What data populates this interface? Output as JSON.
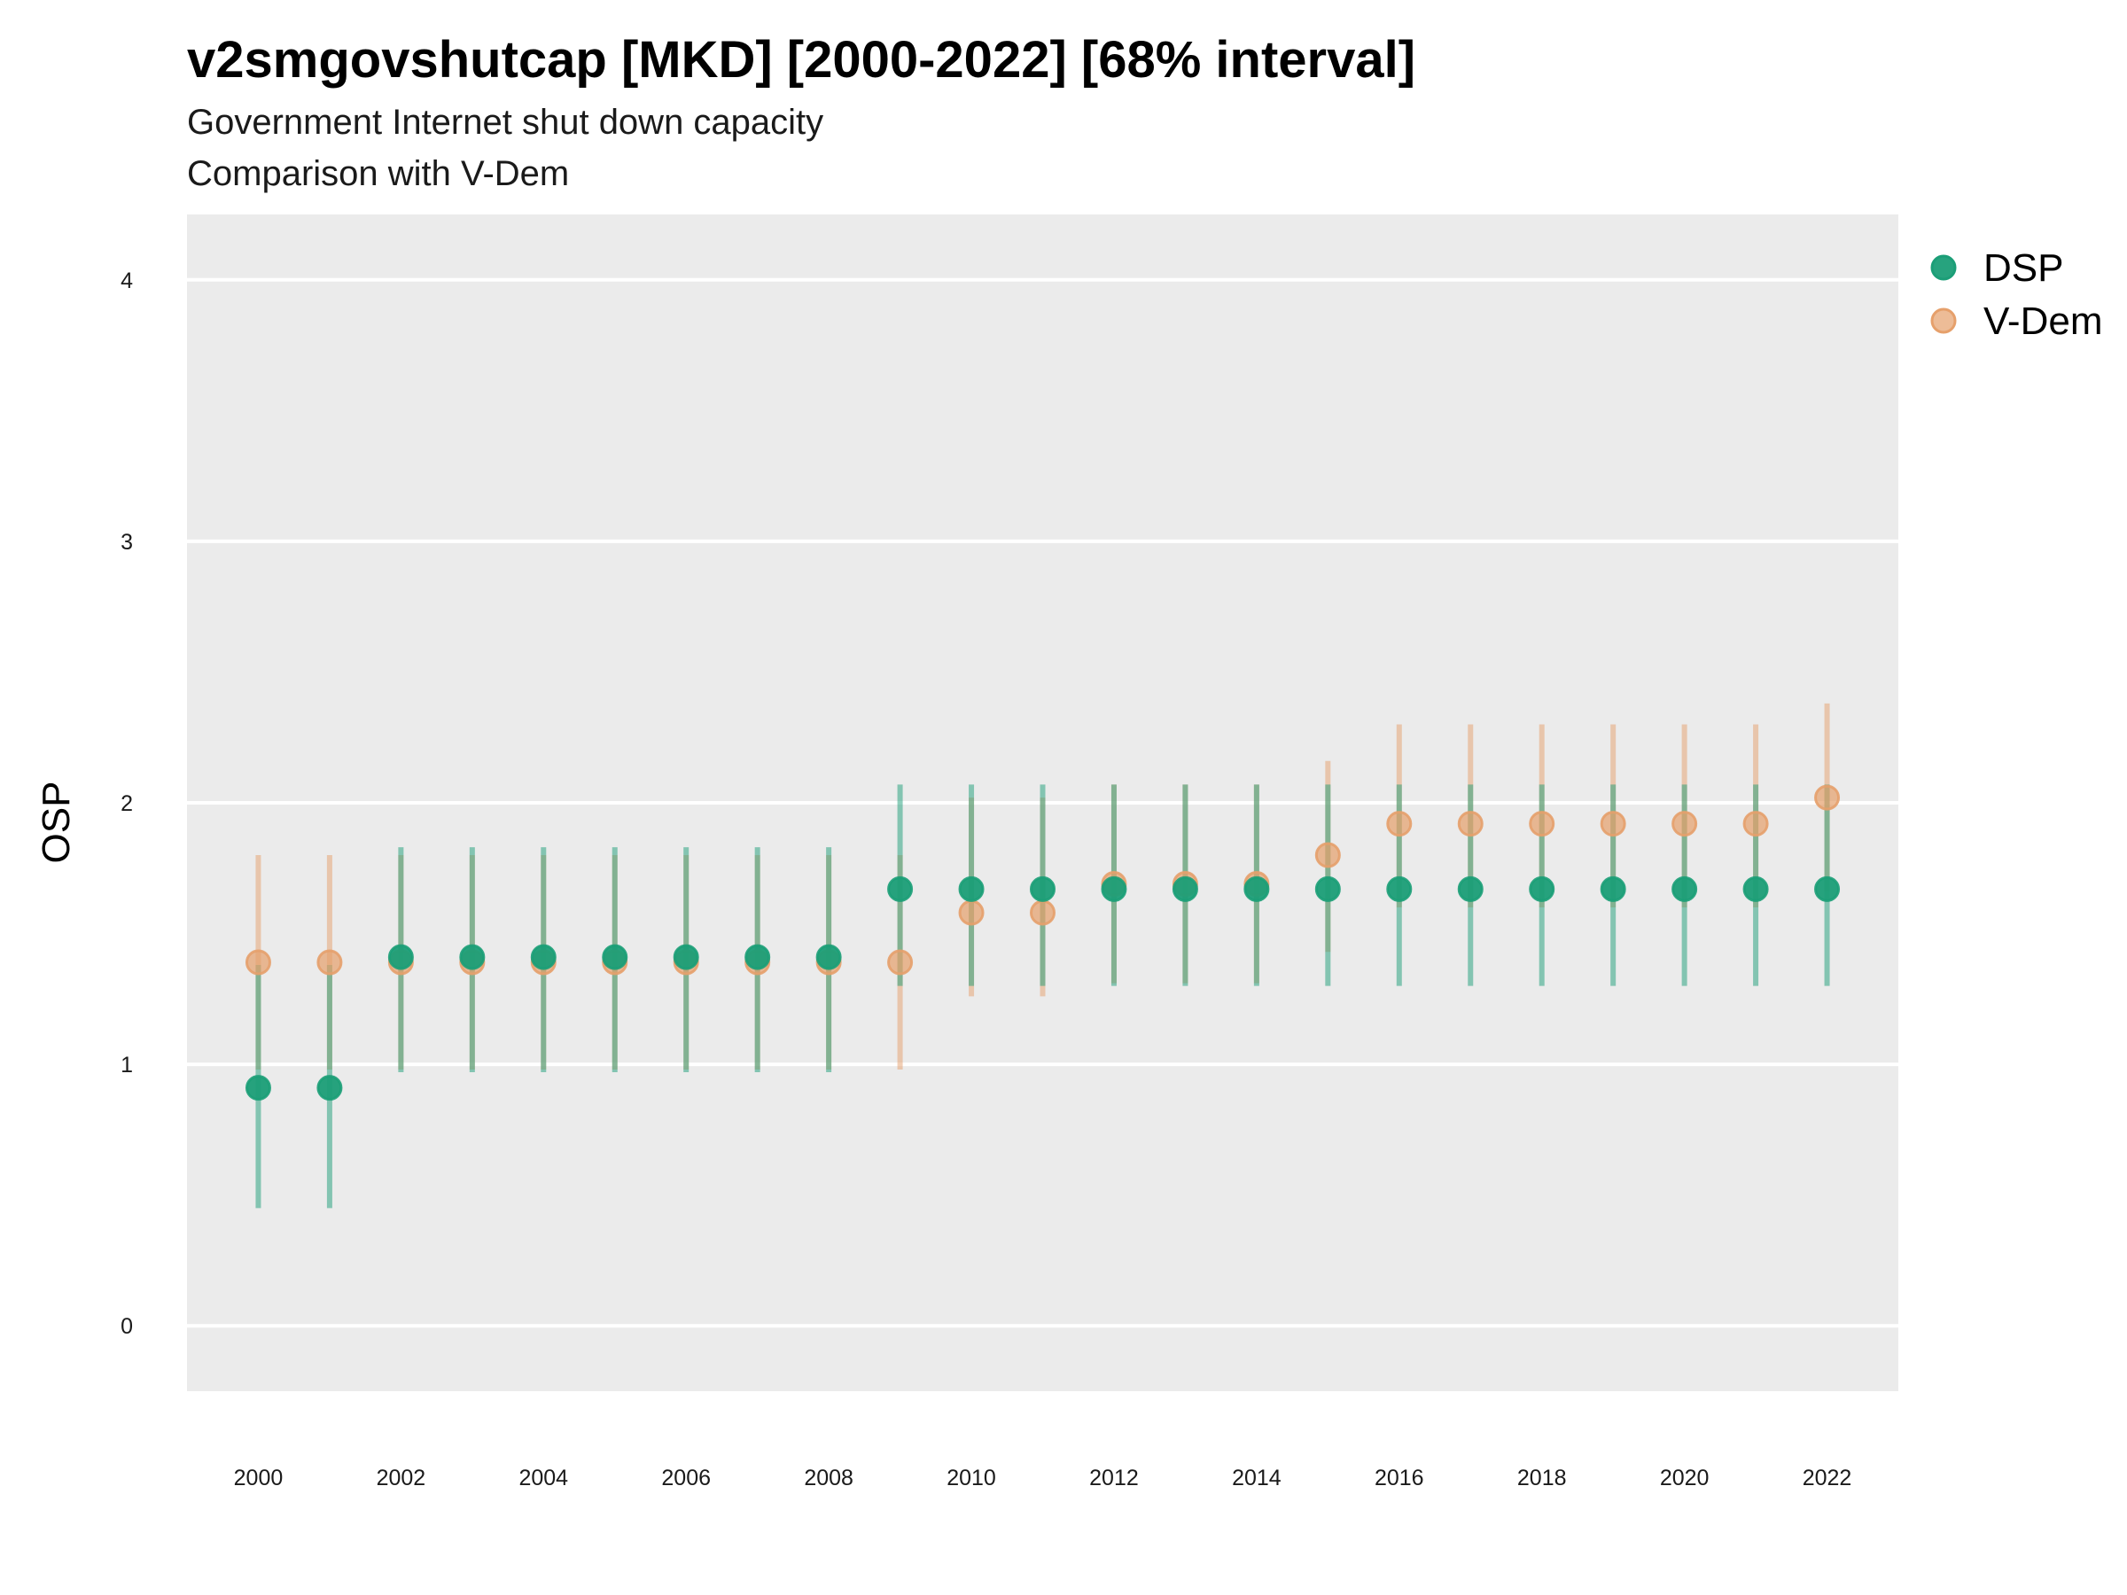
{
  "chart_data": {
    "type": "scatter",
    "title": "v2smgovshutcap [MKD] [2000-2022] [68% interval]",
    "subtitle": "Government Internet shut down capacity",
    "subtitle2": "Comparison with V-Dem",
    "xlabel": "",
    "ylabel": "OSP",
    "ylim": [
      -0.25,
      4.25
    ],
    "yticks": [
      0,
      1,
      2,
      3,
      4
    ],
    "xlim": [
      1999,
      2023
    ],
    "xticks": [
      2000,
      2002,
      2004,
      2006,
      2008,
      2010,
      2012,
      2014,
      2016,
      2018,
      2020,
      2022
    ],
    "grid": true,
    "legend_position": "right",
    "x": [
      2000,
      2001,
      2002,
      2003,
      2004,
      2005,
      2006,
      2007,
      2008,
      2009,
      2010,
      2011,
      2012,
      2013,
      2014,
      2015,
      2016,
      2017,
      2018,
      2019,
      2020,
      2021,
      2022
    ],
    "series": [
      {
        "name": "DSP",
        "color": "#1b9e77",
        "values": [
          0.91,
          0.91,
          1.41,
          1.41,
          1.41,
          1.41,
          1.41,
          1.41,
          1.41,
          1.67,
          1.67,
          1.67,
          1.67,
          1.67,
          1.67,
          1.67,
          1.67,
          1.67,
          1.67,
          1.67,
          1.67,
          1.67,
          1.67
        ],
        "lower": [
          0.45,
          0.45,
          0.97,
          0.97,
          0.97,
          0.97,
          0.97,
          0.97,
          0.97,
          1.3,
          1.3,
          1.3,
          1.3,
          1.3,
          1.3,
          1.3,
          1.3,
          1.3,
          1.3,
          1.3,
          1.3,
          1.3,
          1.3
        ],
        "upper": [
          1.38,
          1.38,
          1.83,
          1.83,
          1.83,
          1.83,
          1.83,
          1.83,
          1.83,
          2.07,
          2.07,
          2.07,
          2.07,
          2.07,
          2.07,
          2.07,
          2.07,
          2.07,
          2.07,
          2.07,
          2.07,
          2.07,
          2.07
        ]
      },
      {
        "name": "V-Dem",
        "color": "#e6a06b",
        "values": [
          1.39,
          1.39,
          1.39,
          1.39,
          1.39,
          1.39,
          1.39,
          1.39,
          1.39,
          1.39,
          1.58,
          1.58,
          1.69,
          1.69,
          1.69,
          1.8,
          1.92,
          1.92,
          1.92,
          1.92,
          1.92,
          1.92,
          2.02
        ],
        "lower": [
          0.98,
          0.98,
          0.98,
          0.98,
          0.98,
          0.98,
          0.98,
          0.98,
          0.98,
          0.98,
          1.26,
          1.26,
          1.31,
          1.31,
          1.31,
          1.43,
          1.6,
          1.6,
          1.6,
          1.6,
          1.6,
          1.6,
          1.66
        ],
        "upper": [
          1.8,
          1.8,
          1.8,
          1.8,
          1.8,
          1.8,
          1.8,
          1.8,
          1.8,
          1.8,
          2.02,
          2.02,
          2.07,
          2.07,
          2.07,
          2.16,
          2.3,
          2.3,
          2.3,
          2.3,
          2.3,
          2.3,
          2.38
        ]
      }
    ]
  }
}
